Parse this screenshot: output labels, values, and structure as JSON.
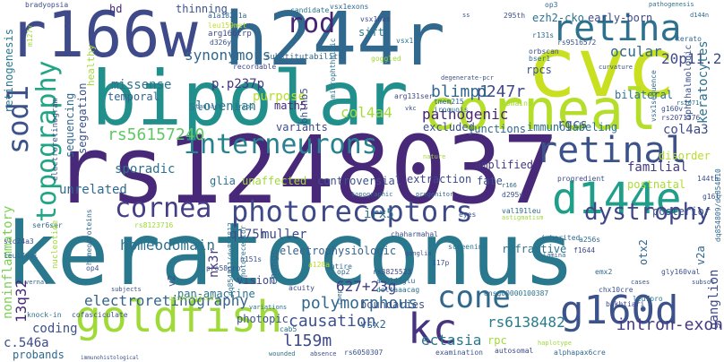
{
  "words": [
    {
      "text": "keratoconus",
      "color": "#2a788e"
    },
    {
      "text": "rs1248037",
      "color": "#482878"
    },
    {
      "text": "h244r",
      "color": "#31688e"
    },
    {
      "text": "bipolar",
      "color": "#21908d"
    },
    {
      "text": "cvc",
      "color": "#c8e020"
    },
    {
      "text": "r166w",
      "color": "#3e4a89"
    },
    {
      "text": "corneal",
      "color": "#b5de2b"
    },
    {
      "text": "retina",
      "color": "#2c728e"
    },
    {
      "text": "retinal",
      "color": "#3b528b"
    },
    {
      "text": "interneurons",
      "color": "#26828e"
    },
    {
      "text": "photoreceptors",
      "color": "#3e4989"
    },
    {
      "text": "d144e",
      "color": "#1f9e89"
    },
    {
      "text": "goldfish",
      "color": "#a0da39"
    },
    {
      "text": "g160d",
      "color": "#3b528b"
    },
    {
      "text": "cone",
      "color": "#31688e"
    },
    {
      "text": "kc",
      "color": "#463480"
    },
    {
      "text": "dystrophy",
      "color": "#3f4788"
    },
    {
      "text": "cornea",
      "color": "#433e85"
    },
    {
      "text": "topography",
      "color": "#21a685"
    },
    {
      "text": "sod1",
      "color": "#3b528b"
    },
    {
      "text": "rod",
      "color": "#482475"
    },
    {
      "text": "p247r",
      "color": "#3e4a89"
    },
    {
      "text": "blimp1",
      "color": "#31688e"
    },
    {
      "text": "rs56157240",
      "color": "#5ec962"
    },
    {
      "text": "electroretinography",
      "color": "#33638d"
    },
    {
      "text": "homeodomain",
      "color": "#2c728e"
    },
    {
      "text": "causation",
      "color": "#3b528b"
    },
    {
      "text": "l159m",
      "color": "#3e4989"
    },
    {
      "text": "polymorphous",
      "color": "#31688e"
    },
    {
      "text": "intron-exon",
      "color": "#443983"
    },
    {
      "text": "ectasia",
      "color": "#2a788e"
    },
    {
      "text": "rs6138482",
      "color": "#287c8e"
    },
    {
      "text": "627+23g",
      "color": "#433e85"
    },
    {
      "text": "q175h",
      "color": "#3e4a89"
    },
    {
      "text": "synonymous",
      "color": "#31688e"
    },
    {
      "text": "p.p237p",
      "color": "#453781"
    },
    {
      "text": "purpose",
      "color": "#b8de29"
    },
    {
      "text": "missense",
      "color": "#2c728e"
    },
    {
      "text": "slovenian",
      "color": "#2a788e"
    },
    {
      "text": "pathogenic",
      "color": "#482475"
    },
    {
      "text": "col4a4",
      "color": "#a5db36"
    },
    {
      "text": "rgcs",
      "color": "#3b528b"
    },
    {
      "text": "ocular",
      "color": "#31688e"
    },
    {
      "text": "20p11.2",
      "color": "#3e4a89"
    },
    {
      "text": "keratocytes",
      "color": "#2c728e"
    },
    {
      "text": "col4a3",
      "color": "#3e4a89"
    },
    {
      "text": "familial",
      "color": "#443983"
    },
    {
      "text": "postnatal",
      "color": "#addc30"
    },
    {
      "text": "ganglion",
      "color": "#3e4989"
    },
    {
      "text": "13q32",
      "color": "#482878"
    },
    {
      "text": "noninflammatory",
      "color": "#7ad151"
    },
    {
      "text": "coding",
      "color": "#3b528b"
    },
    {
      "text": "c.546a",
      "color": "#3e4a89"
    },
    {
      "text": "probands",
      "color": "#31688e"
    },
    {
      "text": "unrelated",
      "color": "#31688e"
    },
    {
      "text": "sporadic",
      "color": "#2c728e"
    },
    {
      "text": "segregation",
      "color": "#3b528b"
    },
    {
      "text": "temporal",
      "color": "#33638d"
    },
    {
      "text": "sequencing",
      "color": "#31688e"
    },
    {
      "text": "retinogenesis",
      "color": "#2a788e"
    },
    {
      "text": "unaffected",
      "color": "#a0da39"
    },
    {
      "text": "controversial",
      "color": "#3b528b"
    },
    {
      "text": "extraction",
      "color": "#3e4a89"
    },
    {
      "text": "amplified",
      "color": "#453781"
    },
    {
      "text": "junctions",
      "color": "#31688e"
    },
    {
      "text": "immunolabeling",
      "color": "#2c728e"
    },
    {
      "text": "excluded",
      "color": "#3b528b"
    },
    {
      "text": "variants",
      "color": "#3e4a89"
    },
    {
      "text": "bhlhb5",
      "color": "#3b528b"
    },
    {
      "text": "math5",
      "color": "#482878"
    },
    {
      "text": "glia",
      "color": "#2c728e"
    },
    {
      "text": "muller",
      "color": "#3e4a89"
    },
    {
      "text": "irx5",
      "color": "#2a788e"
    },
    {
      "text": "fate",
      "color": "#3b528b"
    },
    {
      "text": "electrophysiologic",
      "color": "#33638d"
    },
    {
      "text": "refractive",
      "color": "#2c728e"
    },
    {
      "text": "boundaries",
      "color": "#3b528b"
    },
    {
      "text": "vsx2",
      "color": "#31688e"
    },
    {
      "text": "rpc",
      "color": "#a0da39"
    },
    {
      "text": "photopic",
      "color": "#3b528b"
    },
    {
      "text": "vision",
      "color": "#3e4a89"
    },
    {
      "text": "pan-amacrine",
      "color": "#2c728e"
    },
    {
      "text": "nk3r",
      "color": "#443983"
    },
    {
      "text": "change",
      "color": "#31688e"
    },
    {
      "text": "v2",
      "color": "#3b528b"
    },
    {
      "text": "otx2",
      "color": "#31688e"
    },
    {
      "text": "v2a",
      "color": "#31688e"
    },
    {
      "text": "sift",
      "color": "#2a788e"
    },
    {
      "text": "rpcs",
      "color": "#3b528b"
    },
    {
      "text": "bilateral",
      "color": "#2c728e"
    },
    {
      "text": "disorder",
      "color": "#b5de2b"
    },
    {
      "text": "posterior",
      "color": "#3b528b"
    },
    {
      "text": "ophthalmologic",
      "color": "#3b528b"
    },
    {
      "text": "ezh2-cko",
      "color": "#2c728e"
    },
    {
      "text": "early-born",
      "color": "#3e4a89"
    },
    {
      "text": "healthy",
      "color": "#a5db36"
    },
    {
      "text": "hd",
      "color": "#482878"
    },
    {
      "text": "thinning",
      "color": "#3b528b"
    },
    {
      "text": "substitutability",
      "color": "#31688e"
    },
    {
      "text": "arg166trp",
      "color": "#3e4989"
    },
    {
      "text": "d326y",
      "color": "#3b528b"
    },
    {
      "text": "a1a182a1a",
      "color": "#31688e"
    },
    {
      "text": "leu159met",
      "color": "#c2df23"
    },
    {
      "text": "vsx1exons",
      "color": "#31688e"
    },
    {
      "text": "vsx1has",
      "color": "#3e4a89"
    },
    {
      "text": "candidate",
      "color": "#2c728e"
    },
    {
      "text": "295th",
      "color": "#3b528b"
    },
    {
      "text": "op3",
      "color": "#31688e"
    },
    {
      "text": "r131s",
      "color": "#31688e"
    },
    {
      "text": "rs9516572",
      "color": "#3b528b"
    },
    {
      "text": "orbscan",
      "color": "#3e4a89"
    },
    {
      "text": "bser1",
      "color": "#2c728e"
    },
    {
      "text": "g160v",
      "color": "#3b528b"
    },
    {
      "text": "rs2071376",
      "color": "#3e4a89"
    },
    {
      "text": "electroretinogram",
      "color": "#3b528b"
    },
    {
      "text": "microphthalmic",
      "color": "#2c728e"
    },
    {
      "text": "goggled",
      "color": "#a0da39"
    },
    {
      "text": "arg131ser",
      "color": "#3e4989"
    },
    {
      "text": "tmem215",
      "color": "#31688e"
    },
    {
      "text": "iroquois",
      "color": "#2c728e"
    },
    {
      "text": "vsx1sequence",
      "color": "#31688e"
    },
    {
      "text": "absence",
      "color": "#3b528b"
    },
    {
      "text": "domains",
      "color": "#a0da39"
    },
    {
      "text": "d295y",
      "color": "#3b528b"
    },
    {
      "text": "val191leu",
      "color": "#31688e"
    },
    {
      "text": "chx10cre",
      "color": "#3b528b"
    },
    {
      "text": "leu7pro",
      "color": "#2c728e"
    },
    {
      "text": "bakhtiari",
      "color": "#3e4a89"
    },
    {
      "text": "emx2",
      "color": "#31688e"
    },
    {
      "text": "gly160val",
      "color": "#3b528b"
    },
    {
      "text": "ensg00000100387",
      "color": "#2c728e"
    },
    {
      "text": "rs3825523",
      "color": "#3e4a89"
    },
    {
      "text": "asp144glu",
      "color": "#31688e"
    },
    {
      "text": "deltaaacag",
      "color": "#2c728e"
    },
    {
      "text": "examination",
      "color": "#3b528b"
    },
    {
      "text": "autosomal",
      "color": "#3e4a89"
    },
    {
      "text": "alphapax6cre",
      "color": "#31688e"
    },
    {
      "text": "rs6050307",
      "color": "#3b528b"
    },
    {
      "text": "f1644",
      "color": "#3e4a89"
    },
    {
      "text": "a256s",
      "color": "#31688e"
    },
    {
      "text": "screening",
      "color": "#2c728e"
    },
    {
      "text": "chaharmahal",
      "color": "#3b528b"
    },
    {
      "text": "knock-in",
      "color": "#2c728e"
    },
    {
      "text": "cofasciculate",
      "color": "#3b528b"
    },
    {
      "text": "ser6ser",
      "color": "#31688e"
    },
    {
      "text": "slc24a3",
      "color": "#3b528b"
    },
    {
      "text": "leu17val",
      "color": "#31688e"
    },
    {
      "text": "rs8123716",
      "color": "#a0da39"
    },
    {
      "text": "dq854811/dq854812",
      "color": "#2c728e"
    },
    {
      "text": "pro58pro",
      "color": "#3b528b"
    },
    {
      "text": "homeoproteins",
      "color": "#31688e"
    },
    {
      "text": "photoreceptor",
      "color": "#2c728e"
    },
    {
      "text": "nucleotide",
      "color": "#a0da39"
    },
    {
      "text": "op4",
      "color": "#3b528b"
    },
    {
      "text": "entire",
      "color": "#31688e"
    },
    {
      "text": "acuity",
      "color": "#3e4a89"
    },
    {
      "text": "cab5",
      "color": "#2c728e"
    },
    {
      "text": "117p",
      "color": "#3b528b"
    },
    {
      "text": "op2",
      "color": "#31688e"
    },
    {
      "text": "a128a",
      "color": "#c2df23"
    },
    {
      "text": "progredient",
      "color": "#3e4a89"
    },
    {
      "text": "inherited",
      "color": "#31688e"
    },
    {
      "text": "144th",
      "color": "#3b528b"
    },
    {
      "text": "bradyopsia",
      "color": "#3e4a89"
    },
    {
      "text": "m127v",
      "color": "#a0da39"
    },
    {
      "text": "subsot",
      "color": "#3b528b"
    },
    {
      "text": "vsx1",
      "color": "#2c728e"
    },
    {
      "text": "eyes",
      "color": "#3b528b"
    },
    {
      "text": "dq854809/dq854810",
      "color": "#31688e"
    },
    {
      "text": "recordable",
      "color": "#3e4a89"
    },
    {
      "text": "rs2071",
      "color": "#2c728e"
    },
    {
      "text": "g16l",
      "color": "#3b528b"
    },
    {
      "text": "kerato",
      "color": "#31688e"
    },
    {
      "text": "vkc",
      "color": "#3b528b"
    },
    {
      "text": "taulact",
      "color": "#31688e"
    },
    {
      "text": "immunohistological",
      "color": "#3b528b"
    },
    {
      "text": "progenitor",
      "color": "#31688e"
    },
    {
      "text": "variations",
      "color": "#2c728e"
    },
    {
      "text": "nature",
      "color": "#a0da39"
    },
    {
      "text": "subjects",
      "color": "#3b528b"
    },
    {
      "text": "vernal",
      "color": "#31688e"
    },
    {
      "text": "pathogenesis",
      "color": "#2c728e"
    },
    {
      "text": "curvature",
      "color": "#3b528b"
    },
    {
      "text": "d144n",
      "color": "#31688e"
    },
    {
      "text": "degenerate-pcr",
      "color": "#3b528b"
    },
    {
      "text": "astigmatism",
      "color": "#a0da39"
    },
    {
      "text": "r166",
      "color": "#31688e"
    },
    {
      "text": "n151s",
      "color": "#3b528b"
    },
    {
      "text": "wounded",
      "color": "#2c728e"
    },
    {
      "text": "unidentified",
      "color": "#a0da39"
    },
    {
      "text": "ganglia",
      "color": "#3b528b"
    },
    {
      "text": "lamina",
      "color": "#31688e"
    },
    {
      "text": "topographic",
      "color": "#2c728e"
    },
    {
      "text": "ss",
      "color": "#3b528b"
    },
    {
      "text": "haplotype",
      "color": "#a0da39"
    },
    {
      "text": "cases",
      "color": "#3b528b"
    },
    {
      "text": "caep",
      "color": "#31688e"
    },
    {
      "text": "trip1",
      "color": "#2c728e"
    },
    {
      "text": "rosp3",
      "color": "#3b528b"
    }
  ]
}
